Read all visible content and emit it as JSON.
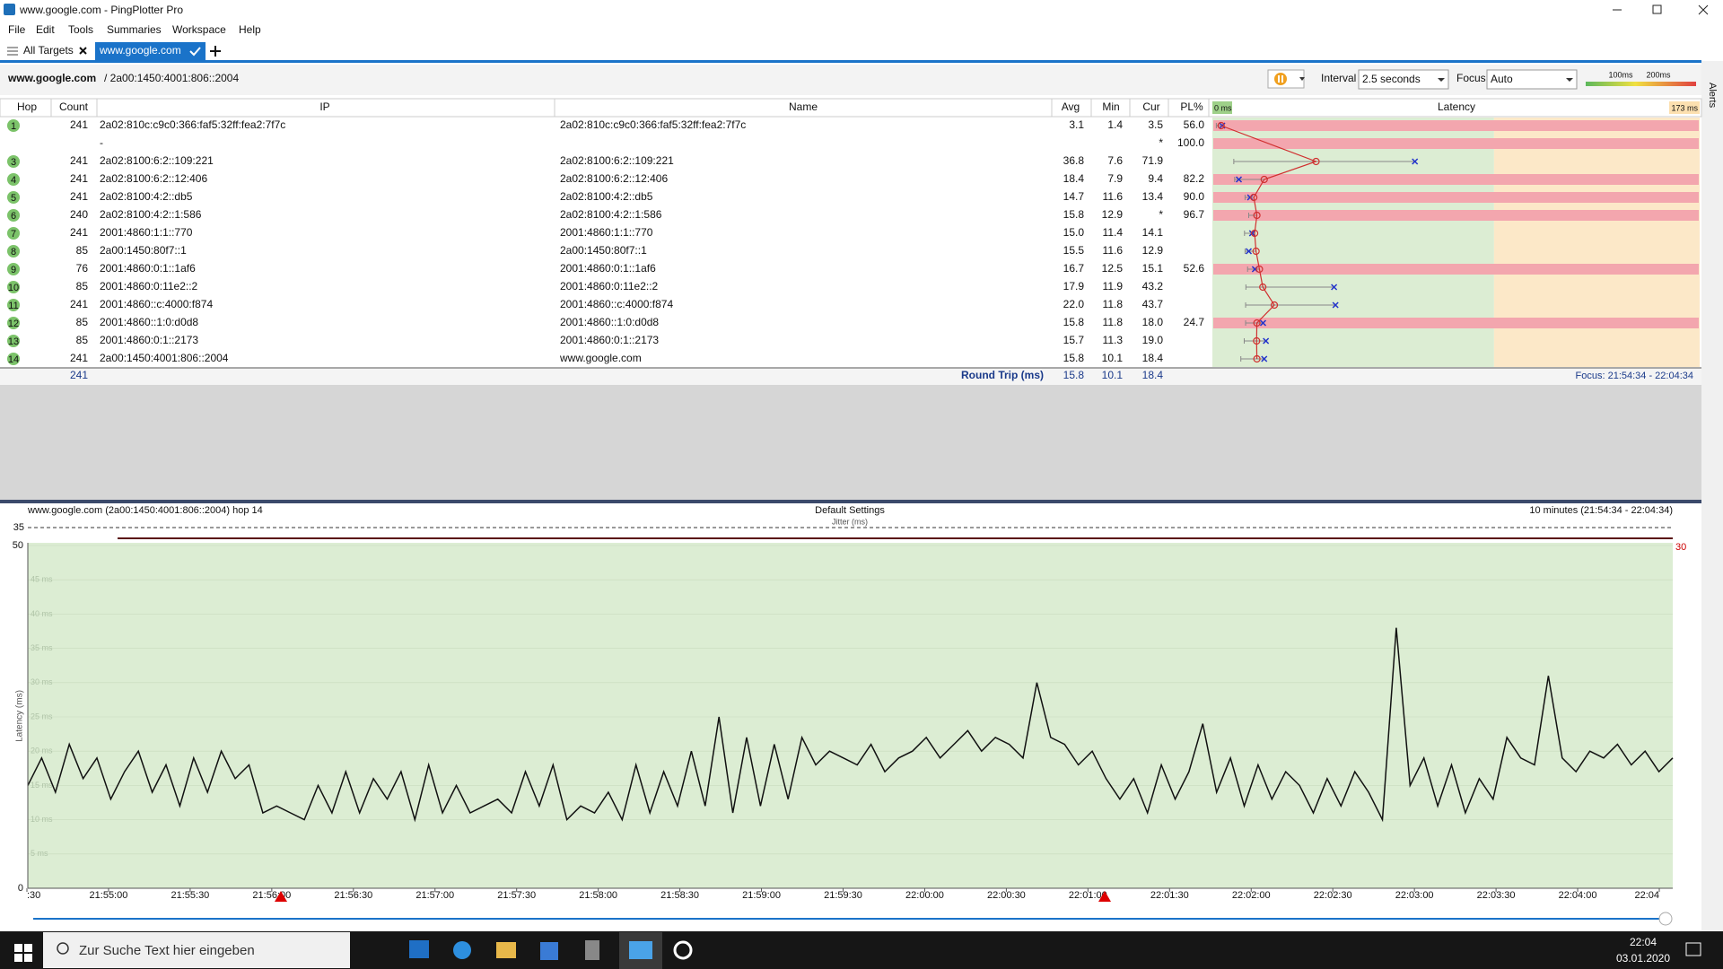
{
  "window": {
    "title": "www.google.com - PingPlotter Pro"
  },
  "menu": [
    "File",
    "Edit",
    "Tools",
    "Summaries",
    "Workspace",
    "Help"
  ],
  "tabs": [
    "All Targets",
    "www.google.com"
  ],
  "target": {
    "host": "www.google.com",
    "address": "/ 2a00:1450:4001:806::2004"
  },
  "controls": {
    "interval_label": "Interval",
    "interval": "2.5 seconds",
    "focus_label": "Focus",
    "focus": "Auto",
    "thresholds": [
      {
        "value": 100,
        "label": "100ms"
      },
      {
        "value": 200,
        "label": "200ms"
      }
    ]
  },
  "table": {
    "columns": [
      "Hop",
      "Count",
      "IP",
      "Name",
      "Avg",
      "Min",
      "Cur",
      "PL%",
      "Latency"
    ],
    "latency_ticks": [
      {
        "value": 0,
        "label": "0 ms"
      },
      {
        "value": 173,
        "label": "173 ms"
      }
    ],
    "rows": [
      {
        "hop": 1,
        "count": 241,
        "ip": "2a02:810c:c9c0:366:faf5:32ff:fea2:7f7c",
        "name": "2a02:810c:c9c0:366:faf5:32ff:fea2:7f7c",
        "avg": "3.1",
        "min": "1.4",
        "cur": "3.5",
        "pl": "56.0"
      },
      {
        "hop": null,
        "count": null,
        "ip": "-",
        "name": null,
        "avg": null,
        "min": null,
        "cur": "*",
        "pl": "100.0"
      },
      {
        "hop": 3,
        "count": 241,
        "ip": "2a02:8100:6:2::109:221",
        "name": "2a02:8100:6:2::109:221",
        "avg": "36.8",
        "min": "7.6",
        "cur": "71.9",
        "pl": null
      },
      {
        "hop": 4,
        "count": 241,
        "ip": "2a02:8100:6:2::12:406",
        "name": "2a02:8100:6:2::12:406",
        "avg": "18.4",
        "min": "7.9",
        "cur": "9.4",
        "pl": "82.2"
      },
      {
        "hop": 5,
        "count": 241,
        "ip": "2a02:8100:4:2::db5",
        "name": "2a02:8100:4:2::db5",
        "avg": "14.7",
        "min": "11.6",
        "cur": "13.4",
        "pl": "90.0"
      },
      {
        "hop": 6,
        "count": 240,
        "ip": "2a02:8100:4:2::1:586",
        "name": "2a02:8100:4:2::1:586",
        "avg": "15.8",
        "min": "12.9",
        "cur": "*",
        "pl": "96.7"
      },
      {
        "hop": 7,
        "count": 241,
        "ip": "2001:4860:1:1::770",
        "name": "2001:4860:1:1::770",
        "avg": "15.0",
        "min": "11.4",
        "cur": "14.1",
        "pl": null
      },
      {
        "hop": 8,
        "count": 85,
        "ip": "2a00:1450:80f7::1",
        "name": "2a00:1450:80f7::1",
        "avg": "15.5",
        "min": "11.6",
        "cur": "12.9",
        "pl": null
      },
      {
        "hop": 9,
        "count": 76,
        "ip": "2001:4860:0:1::1af6",
        "name": "2001:4860:0:1::1af6",
        "avg": "16.7",
        "min": "12.5",
        "cur": "15.1",
        "pl": "52.6"
      },
      {
        "hop": 10,
        "count": 85,
        "ip": "2001:4860:0:11e2::2",
        "name": "2001:4860:0:11e2::2",
        "avg": "17.9",
        "min": "11.9",
        "cur": "43.2",
        "pl": null
      },
      {
        "hop": 11,
        "count": 241,
        "ip": "2001:4860::c:4000:f874",
        "name": "2001:4860::c:4000:f874",
        "avg": "22.0",
        "min": "11.8",
        "cur": "43.7",
        "pl": null
      },
      {
        "hop": 12,
        "count": 85,
        "ip": "2001:4860::1:0:d0d8",
        "name": "2001:4860::1:0:d0d8",
        "avg": "15.8",
        "min": "11.8",
        "cur": "18.0",
        "pl": "24.7"
      },
      {
        "hop": 13,
        "count": 85,
        "ip": "2001:4860:0:1::2173",
        "name": "2001:4860:0:1::2173",
        "avg": "15.7",
        "min": "11.3",
        "cur": "19.0",
        "pl": null
      },
      {
        "hop": 14,
        "count": 241,
        "ip": "2a00:1450:4001:806::2004",
        "name": "www.google.com",
        "avg": "15.8",
        "min": "10.1",
        "cur": "18.4",
        "pl": null
      }
    ],
    "summary": {
      "count": 241,
      "label": "Round Trip (ms)",
      "avg": "15.8",
      "min": "10.1",
      "cur": "18.4",
      "focus": "Focus: 21:54:34 - 22:04:34"
    }
  },
  "graph": {
    "title": "www.google.com (2a00:1450:4001:806::2004) hop 14",
    "settings": "Default Settings",
    "range": "10 minutes (21:54:34 - 22:04:34)",
    "jitter_label": "Jitter (ms)",
    "jitter_left": 35,
    "jitter_right": 30,
    "y_label": "Latency (ms)",
    "ylim": [
      0,
      50
    ],
    "yticks": [
      0,
      {
        "value": 5,
        "label": "5 ms"
      },
      {
        "value": 10,
        "label": "10 ms"
      },
      {
        "value": 15,
        "label": "15 ms"
      },
      {
        "value": 20,
        "label": "20 ms"
      },
      {
        "value": 25,
        "label": "25 ms"
      },
      {
        "value": 30,
        "label": "30 ms"
      },
      {
        "value": 35,
        "label": "35 ms"
      },
      {
        "value": 40,
        "label": "40 ms"
      },
      {
        "value": 45,
        "label": "45 ms"
      },
      50
    ],
    "xticks": [
      ":30",
      "21:55:00",
      "21:55:30",
      "21:56:00",
      "21:56:30",
      "21:57:00",
      "21:57:30",
      "21:58:00",
      "21:58:30",
      "21:59:00",
      "21:59:30",
      "22:00:00",
      "22:00:30",
      "22:01:00",
      "22:01:30",
      "22:02:00",
      "22:02:30",
      "22:03:00",
      "22:03:30",
      "22:04:00",
      "22:04"
    ],
    "values": [
      15,
      19,
      14,
      21,
      16,
      19,
      13,
      17,
      20,
      14,
      18,
      12,
      19,
      14,
      20,
      16,
      18,
      11,
      12,
      11,
      10,
      15,
      11,
      17,
      11,
      16,
      13,
      17,
      10,
      18,
      11,
      15,
      11,
      12,
      13,
      11,
      17,
      12,
      18,
      10,
      12,
      11,
      14,
      10,
      18,
      11,
      17,
      12,
      20,
      12,
      25,
      11,
      22,
      12,
      21,
      13,
      22,
      18,
      20,
      19,
      18,
      21,
      17,
      19,
      20,
      22,
      19,
      21,
      23,
      20,
      22,
      21,
      19,
      30,
      22,
      21,
      18,
      20,
      16,
      13,
      16,
      11,
      18,
      13,
      17,
      24,
      14,
      19,
      12,
      18,
      13,
      17,
      15,
      11,
      16,
      12,
      17,
      14,
      10,
      38,
      15,
      19,
      12,
      18,
      11,
      16,
      13,
      22,
      19,
      18,
      31,
      19,
      17,
      20,
      19,
      21,
      18,
      20,
      17,
      19
    ]
  },
  "taskbar": {
    "search": "Zur Suche Text hier eingeben",
    "time": "22:04",
    "date": "03.01.2020"
  },
  "side": {
    "alerts": "Alerts"
  }
}
